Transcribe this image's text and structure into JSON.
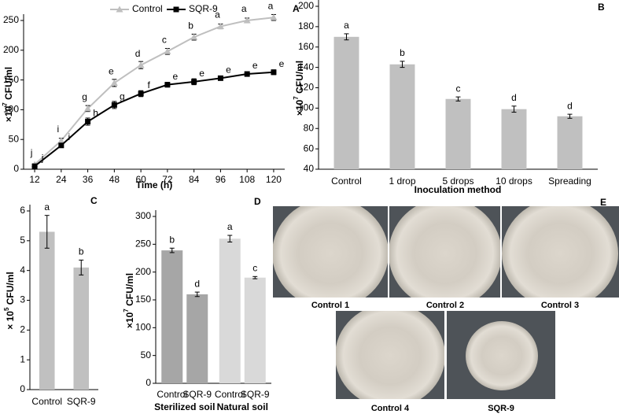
{
  "chart_data": [
    {
      "type": "line",
      "panel_label": "A",
      "x": [
        12,
        24,
        36,
        48,
        60,
        72,
        84,
        96,
        108,
        120
      ],
      "xlim": [
        7,
        125
      ],
      "xticks": [
        12,
        24,
        36,
        48,
        60,
        72,
        84,
        96,
        108,
        120
      ],
      "ylim": [
        0,
        250
      ],
      "yticks": [
        0,
        50,
        100,
        150,
        200,
        250
      ],
      "xlabel": "Time (h)",
      "ylabel": [
        "×10",
        "7",
        " CFU/ml"
      ],
      "series": [
        {
          "name": "Control",
          "color": "#bfbfbf",
          "marker": "triangle",
          "values": [
            8,
            48,
            102,
            145,
            175,
            198,
            222,
            240,
            250,
            255
          ],
          "errors": [
            1,
            4,
            5,
            6,
            6,
            5,
            5,
            4,
            4,
            5
          ],
          "letters": [
            "j",
            "i",
            "g",
            "e",
            "d",
            "c",
            "b",
            "a",
            "a",
            "a"
          ]
        },
        {
          "name": "SQR-9",
          "color": "#000000",
          "marker": "square",
          "values": [
            5,
            40,
            80,
            108,
            127,
            142,
            147,
            153,
            160,
            163
          ],
          "errors": [
            1,
            2,
            6,
            6,
            5,
            4,
            5,
            3,
            4,
            4
          ],
          "letters": [
            "j",
            "i",
            "h",
            "g",
            "f",
            "e",
            "e",
            "e",
            "e",
            "e"
          ]
        }
      ]
    },
    {
      "type": "bar",
      "panel_label": "B",
      "color": "#c0c0c0",
      "categories": [
        "Control",
        "1 drop",
        "5 drops",
        "10 drops",
        "Spreading"
      ],
      "values": [
        170,
        143,
        109,
        99,
        92
      ],
      "errors": [
        3,
        3,
        2,
        3,
        2
      ],
      "letters": [
        "a",
        "b",
        "c",
        "d",
        "d"
      ],
      "ylim": [
        40,
        200
      ],
      "yticks": [
        40,
        60,
        80,
        100,
        120,
        140,
        160,
        180,
        200
      ],
      "xlabel": "Inoculation method",
      "ylabel": [
        "×10",
        "7",
        " CFU/ml"
      ]
    },
    {
      "type": "bar",
      "panel_label": "C",
      "color": "#c0c0c0",
      "categories": [
        "Control",
        "SQR-9"
      ],
      "values": [
        5.3,
        4.1
      ],
      "errors": [
        0.55,
        0.25
      ],
      "letters": [
        "a",
        "b"
      ],
      "ylim": [
        0,
        6
      ],
      "yticks": [
        0,
        1,
        2,
        3,
        4,
        5,
        6
      ],
      "ylabel": [
        "× 10",
        "5",
        " CFU/ml"
      ]
    },
    {
      "type": "grouped_bar",
      "panel_label": "D",
      "ylim": [
        0,
        300
      ],
      "yticks": [
        0,
        50,
        100,
        150,
        200,
        250,
        300
      ],
      "ylabel": [
        "×10",
        "7",
        " CFU/ml"
      ],
      "groups": [
        {
          "name": "Sterilized soil",
          "color": "#a6a6a6",
          "categories": [
            "Control",
            "SQR-9"
          ],
          "values": [
            239,
            160
          ],
          "errors": [
            4,
            4
          ],
          "letters": [
            "b",
            "d"
          ]
        },
        {
          "name": "Natural soil",
          "color": "#d9d9d9",
          "categories": [
            "Control",
            "SQR-9"
          ],
          "values": [
            260,
            190
          ],
          "errors": [
            6,
            2
          ],
          "letters": [
            "a",
            "c"
          ]
        }
      ]
    }
  ],
  "panel_e": {
    "label": "E",
    "captions": [
      "Control 1",
      "Control 2",
      "Control 3",
      "Control 4",
      "SQR-9"
    ]
  }
}
